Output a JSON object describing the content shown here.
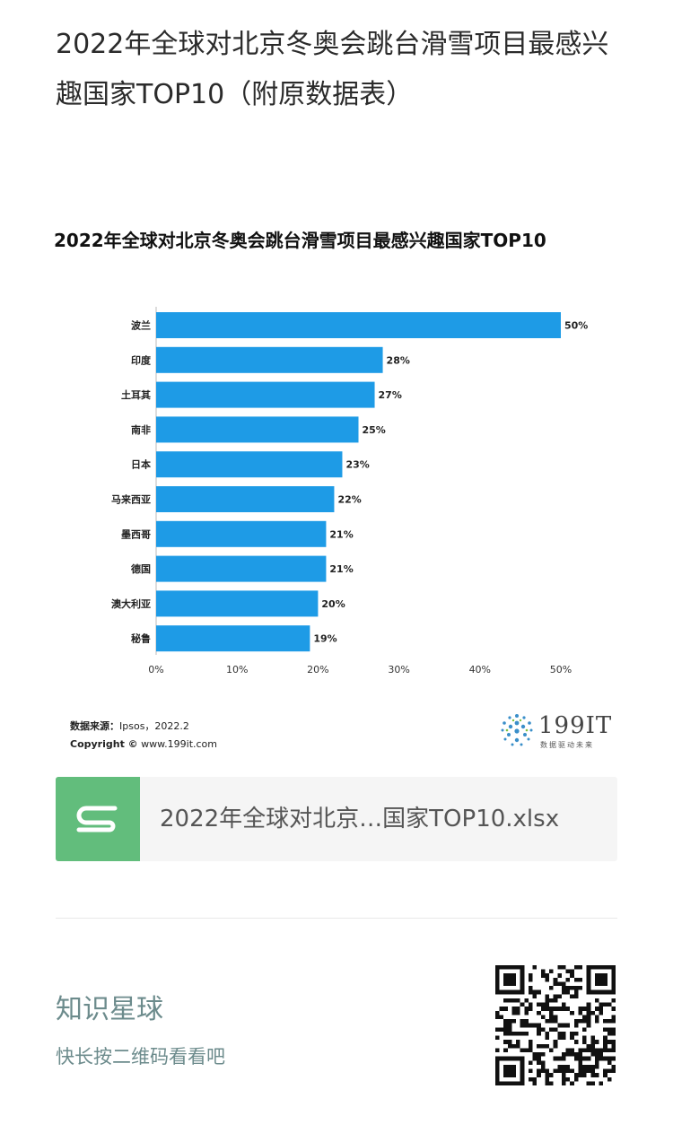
{
  "article": {
    "title": "2022年全球对北京冬奥会跳台滑雪项目最感兴趣国家TOP10（附原数据表）"
  },
  "chart_data": {
    "type": "bar",
    "orientation": "horizontal",
    "title": "2022年全球对北京冬奥会跳台滑雪项目最感兴趣国家TOP10",
    "categories": [
      "波兰",
      "印度",
      "土耳其",
      "南非",
      "日本",
      "马来西亚",
      "墨西哥",
      "德国",
      "澳大利亚",
      "秘鲁"
    ],
    "values": [
      50,
      28,
      27,
      25,
      23,
      22,
      21,
      21,
      20,
      19
    ],
    "value_labels": [
      "50%",
      "28%",
      "27%",
      "25%",
      "23%",
      "22%",
      "21%",
      "21%",
      "20%",
      "19%"
    ],
    "xlim": [
      0,
      50
    ],
    "xticks": [
      "0%",
      "10%",
      "20%",
      "30%",
      "40%",
      "50%"
    ],
    "xlabel": "",
    "ylabel": "",
    "grid": false,
    "bar_color": "#1e9be6"
  },
  "source": {
    "label": "数据来源：",
    "value": "Ipsos，2022.2",
    "copyright_label": "Copyright ©",
    "copyright_value": "www.199it.com"
  },
  "logo": {
    "text": "199IT",
    "sub": "数据驱动未来"
  },
  "attachment": {
    "file_name": "2022年全球对北京…国家TOP10.xlsx",
    "icon": "spreadsheet-icon"
  },
  "promo": {
    "title": "知识星球",
    "subtitle": "快长按二维码看看吧"
  },
  "colors": {
    "file_icon_bg": "#62bd7c",
    "promo_text": "#6c8b8c"
  }
}
